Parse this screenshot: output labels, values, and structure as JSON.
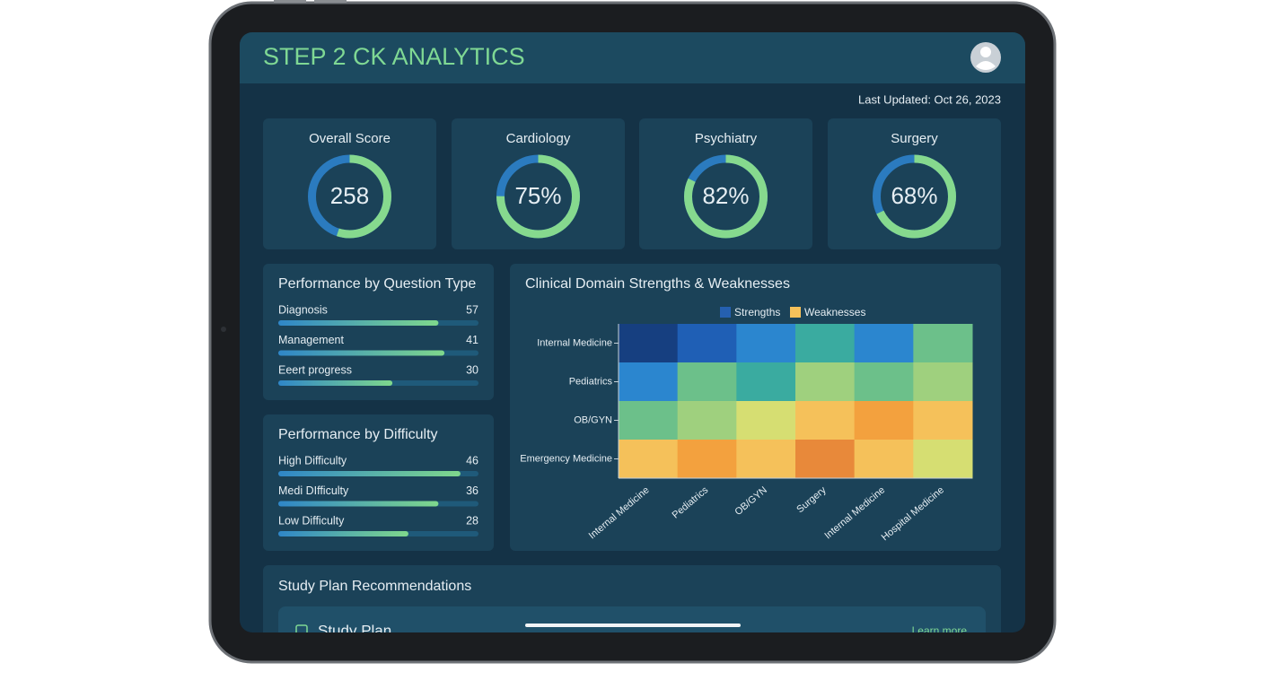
{
  "header": {
    "title": "STEP 2 CK ANALYTICS"
  },
  "last_updated": "Last Updated: Oct 26, 2023",
  "score_cards": [
    {
      "title": "Overall Score",
      "label": "258",
      "arc_percent": 55
    },
    {
      "title": "Cardiology",
      "label": "75%",
      "arc_percent": 75
    },
    {
      "title": "Psychiatry",
      "label": "82%",
      "arc_percent": 82
    },
    {
      "title": "Surgery",
      "label": "68%",
      "arc_percent": 68
    }
  ],
  "question_type": {
    "title": "Performance by Question Type",
    "items": [
      {
        "name": "Diagnosis",
        "value": 57,
        "progress": 80
      },
      {
        "name": "Management",
        "value": 41,
        "progress": 83
      },
      {
        "name": "Eeert progress",
        "value": 30,
        "progress": 57
      }
    ]
  },
  "difficulty": {
    "title": "Performance by Difficulty",
    "items": [
      {
        "name": "High Difficulty",
        "value": 46,
        "progress": 91
      },
      {
        "name": "Medi DIfficulty",
        "value": 36,
        "progress": 80
      },
      {
        "name": "Low Difficulty",
        "value": 28,
        "progress": 65
      }
    ]
  },
  "chart_data": {
    "type": "heatmap",
    "title": "Clinical Domain Strengths & Weaknesses",
    "legend": [
      {
        "name": "Strengths",
        "color": "#2560b0"
      },
      {
        "name": "Weaknesses",
        "color": "#f5c15a"
      }
    ],
    "rows": [
      "Internal Medicine",
      "Pediatrics",
      "OB/GYN",
      "Emergency Medicine"
    ],
    "columns": [
      "Internal Medicine",
      "Pediatrics",
      "OB/GYN",
      "Surgery",
      "Internal Medicine",
      "Hospital Medicine"
    ],
    "values": [
      [
        10,
        9,
        8,
        6,
        8,
        5
      ],
      [
        8,
        5,
        6,
        4,
        5,
        4
      ],
      [
        5,
        4,
        3,
        2,
        1,
        2
      ],
      [
        2,
        1,
        2,
        0,
        2,
        3
      ]
    ],
    "zlim": [
      0,
      10
    ],
    "colorscale": [
      "#e8893a",
      "#f3a13e",
      "#f5c15a",
      "#d6de72",
      "#9fd07e",
      "#6cc08a",
      "#3aaba0",
      "#3196bd",
      "#2b86cf",
      "#1f5fb5",
      "#163f80"
    ]
  },
  "study_plan": {
    "title": "Study Plan Recommendations",
    "card_title": "Study Plan",
    "link": "Learn more"
  }
}
